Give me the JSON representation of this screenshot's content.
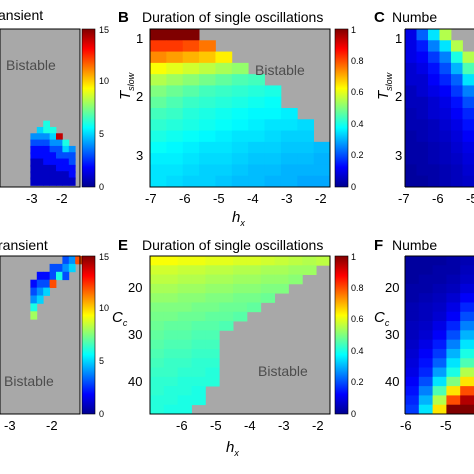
{
  "chart_data": [
    {
      "panel": "",
      "type": "heatmap",
      "title": "ansient",
      "region_label": "Bistable",
      "x_ticks": [
        "-3",
        "-2"
      ],
      "colorbar": {
        "ticks": [
          "0",
          "5",
          "10",
          "15"
        ],
        "range": [
          0,
          15
        ]
      },
      "cells": [
        {
          "x": 0.54,
          "y": 0.58,
          "v": 6
        },
        {
          "x": 0.46,
          "y": 0.62,
          "v": 5
        },
        {
          "x": 0.54,
          "y": 0.62,
          "v": 6
        },
        {
          "x": 0.62,
          "y": 0.62,
          "v": 6
        },
        {
          "x": 0.38,
          "y": 0.66,
          "v": 4
        },
        {
          "x": 0.46,
          "y": 0.66,
          "v": 4
        },
        {
          "x": 0.54,
          "y": 0.66,
          "v": 4
        },
        {
          "x": 0.62,
          "y": 0.66,
          "v": 5
        },
        {
          "x": 0.7,
          "y": 0.66,
          "v": 14
        },
        {
          "x": 0.38,
          "y": 0.7,
          "v": 3
        },
        {
          "x": 0.46,
          "y": 0.7,
          "v": 3
        },
        {
          "x": 0.54,
          "y": 0.7,
          "v": 3
        },
        {
          "x": 0.62,
          "y": 0.7,
          "v": 4
        },
        {
          "x": 0.7,
          "y": 0.7,
          "v": 4
        },
        {
          "x": 0.78,
          "y": 0.7,
          "v": 6
        },
        {
          "x": 0.38,
          "y": 0.74,
          "v": 2
        },
        {
          "x": 0.46,
          "y": 0.74,
          "v": 2
        },
        {
          "x": 0.54,
          "y": 0.74,
          "v": 2
        },
        {
          "x": 0.62,
          "y": 0.74,
          "v": 3
        },
        {
          "x": 0.7,
          "y": 0.74,
          "v": 3
        },
        {
          "x": 0.78,
          "y": 0.74,
          "v": 5
        },
        {
          "x": 0.86,
          "y": 0.74,
          "v": 4
        },
        {
          "x": 0.38,
          "y": 0.78,
          "v": 2
        },
        {
          "x": 0.46,
          "y": 0.78,
          "v": 2
        },
        {
          "x": 0.54,
          "y": 0.78,
          "v": 2
        },
        {
          "x": 0.62,
          "y": 0.78,
          "v": 2
        },
        {
          "x": 0.7,
          "y": 0.78,
          "v": 3
        },
        {
          "x": 0.78,
          "y": 0.78,
          "v": 3
        },
        {
          "x": 0.86,
          "y": 0.78,
          "v": 3
        },
        {
          "x": 0.38,
          "y": 0.82,
          "v": 1
        },
        {
          "x": 0.46,
          "y": 0.82,
          "v": 1
        },
        {
          "x": 0.54,
          "y": 0.82,
          "v": 2
        },
        {
          "x": 0.62,
          "y": 0.82,
          "v": 2
        },
        {
          "x": 0.7,
          "y": 0.82,
          "v": 2
        },
        {
          "x": 0.78,
          "y": 0.82,
          "v": 2
        },
        {
          "x": 0.86,
          "y": 0.82,
          "v": 3
        },
        {
          "x": 0.38,
          "y": 0.86,
          "v": 1
        },
        {
          "x": 0.46,
          "y": 0.86,
          "v": 1
        },
        {
          "x": 0.54,
          "y": 0.86,
          "v": 1
        },
        {
          "x": 0.62,
          "y": 0.86,
          "v": 1
        },
        {
          "x": 0.7,
          "y": 0.86,
          "v": 2
        },
        {
          "x": 0.78,
          "y": 0.86,
          "v": 2
        },
        {
          "x": 0.86,
          "y": 0.86,
          "v": 2
        },
        {
          "x": 0.38,
          "y": 0.9,
          "v": 1
        },
        {
          "x": 0.46,
          "y": 0.9,
          "v": 1
        },
        {
          "x": 0.54,
          "y": 0.9,
          "v": 1
        },
        {
          "x": 0.62,
          "y": 0.9,
          "v": 1
        },
        {
          "x": 0.7,
          "y": 0.9,
          "v": 1
        },
        {
          "x": 0.78,
          "y": 0.9,
          "v": 1
        },
        {
          "x": 0.86,
          "y": 0.9,
          "v": 2
        },
        {
          "x": 0.38,
          "y": 0.94,
          "v": 1
        },
        {
          "x": 0.46,
          "y": 0.94,
          "v": 1
        },
        {
          "x": 0.54,
          "y": 0.94,
          "v": 1
        },
        {
          "x": 0.62,
          "y": 0.94,
          "v": 1
        },
        {
          "x": 0.7,
          "y": 0.94,
          "v": 1
        },
        {
          "x": 0.78,
          "y": 0.94,
          "v": 1
        },
        {
          "x": 0.86,
          "y": 0.94,
          "v": 1
        }
      ]
    },
    {
      "panel": "B",
      "type": "heatmap",
      "title": "Duration of single oscillations",
      "xlabel": "h",
      "xlabel_sub": "x",
      "ylabel": "T",
      "ylabel_sub": "slow",
      "region_label": "Bistable",
      "x_ticks": [
        "-7",
        "-6",
        "-5",
        "-4",
        "-3",
        "-2"
      ],
      "y_ticks": [
        "1",
        "2",
        "3"
      ],
      "colorbar": {
        "ticks": [
          "0",
          "0.2",
          "0.4",
          "0.6",
          "0.8",
          "1"
        ],
        "range": [
          0,
          1
        ]
      },
      "grid": {
        "x_min": -7,
        "x_max": -1.8,
        "ncols": 11,
        "y_min": 0.8,
        "y_max": 3.5,
        "nrows": 14
      },
      "row_ends": [
        -5.6,
        -5.1,
        -4.6,
        -4.1,
        -3.6,
        -3.3,
        -3.0,
        -2.7,
        -2.5,
        -2.3,
        -2.1,
        -1.9,
        -1.8,
        -1.8
      ],
      "row_values": [
        [
          1.0,
          1.0,
          1.0
        ],
        [
          0.82,
          0.82,
          0.8,
          0.76
        ],
        [
          0.74,
          0.72,
          0.7,
          0.68,
          0.64
        ],
        [
          0.62,
          0.6,
          0.58,
          0.56,
          0.54,
          0.52
        ],
        [
          0.55,
          0.53,
          0.51,
          0.49,
          0.47,
          0.45,
          0.44
        ],
        [
          0.5,
          0.48,
          0.46,
          0.44,
          0.43,
          0.42,
          0.41,
          0.4
        ],
        [
          0.47,
          0.45,
          0.43,
          0.42,
          0.41,
          0.4,
          0.39,
          0.38
        ],
        [
          0.44,
          0.43,
          0.41,
          0.4,
          0.39,
          0.38,
          0.37,
          0.37,
          0.36
        ],
        [
          0.42,
          0.41,
          0.4,
          0.39,
          0.38,
          0.37,
          0.36,
          0.35,
          0.35,
          0.34
        ],
        [
          0.4,
          0.39,
          0.38,
          0.37,
          0.36,
          0.35,
          0.35,
          0.34,
          0.33,
          0.33
        ],
        [
          0.38,
          0.37,
          0.36,
          0.35,
          0.35,
          0.34,
          0.33,
          0.33,
          0.32,
          0.32,
          0.31
        ],
        [
          0.36,
          0.36,
          0.35,
          0.34,
          0.34,
          0.33,
          0.32,
          0.32,
          0.31,
          0.31,
          0.3
        ],
        [
          0.35,
          0.35,
          0.34,
          0.33,
          0.33,
          0.32,
          0.31,
          0.31,
          0.3,
          0.3,
          0.3
        ],
        [
          0.35,
          0.34,
          0.33,
          0.33,
          0.32,
          0.31,
          0.31,
          0.3,
          0.3,
          0.29,
          0.29
        ]
      ]
    },
    {
      "panel": "C",
      "type": "heatmap",
      "title": "Numbe",
      "ylabel": "T",
      "ylabel_sub": "slow",
      "x_ticks": [
        "-7",
        "-6",
        "-5"
      ],
      "y_ticks": [
        "1",
        "2",
        "3"
      ],
      "grid": {
        "x_min": -7.1,
        "x_max": -4.3,
        "ncols": 6,
        "y_min": 0.8,
        "y_max": 3.5,
        "nrows": 14
      },
      "row_values": [
        [
          0.1,
          0.22,
          0.35,
          0.55
        ],
        [
          0.1,
          0.15,
          0.25,
          0.35,
          0.55
        ],
        [
          0.1,
          0.12,
          0.18,
          0.25,
          0.4,
          0.55
        ],
        [
          0.08,
          0.1,
          0.14,
          0.2,
          0.3,
          0.45
        ],
        [
          0.08,
          0.08,
          0.12,
          0.16,
          0.22,
          0.35
        ],
        [
          0.06,
          0.08,
          0.1,
          0.12,
          0.18,
          0.25
        ],
        [
          0.06,
          0.06,
          0.08,
          0.1,
          0.14,
          0.2
        ],
        [
          0.05,
          0.06,
          0.08,
          0.09,
          0.12,
          0.16
        ],
        [
          0.05,
          0.05,
          0.06,
          0.08,
          0.1,
          0.14
        ],
        [
          0.04,
          0.05,
          0.06,
          0.07,
          0.09,
          0.12
        ],
        [
          0.04,
          0.04,
          0.05,
          0.06,
          0.08,
          0.1
        ],
        [
          0.04,
          0.04,
          0.05,
          0.06,
          0.07,
          0.09
        ],
        [
          0.03,
          0.04,
          0.04,
          0.05,
          0.06,
          0.08
        ],
        [
          0.03,
          0.03,
          0.04,
          0.05,
          0.06,
          0.07
        ]
      ]
    },
    {
      "panel": "",
      "type": "heatmap",
      "title": "ransient",
      "region_label": "Bistable",
      "x_ticks": [
        "-3",
        "-2"
      ],
      "colorbar": {
        "ticks": [
          "0",
          "5",
          "10",
          "15"
        ],
        "range": [
          0,
          15
        ]
      },
      "cells": [
        {
          "x": 0.78,
          "y": 0.0,
          "v": 3
        },
        {
          "x": 0.86,
          "y": 0.0,
          "v": 4
        },
        {
          "x": 0.94,
          "y": 0.0,
          "v": 12
        },
        {
          "x": 0.62,
          "y": 0.05,
          "v": 3
        },
        {
          "x": 0.7,
          "y": 0.05,
          "v": 3
        },
        {
          "x": 0.78,
          "y": 0.05,
          "v": 4
        },
        {
          "x": 0.86,
          "y": 0.05,
          "v": 5
        },
        {
          "x": 0.46,
          "y": 0.1,
          "v": 2
        },
        {
          "x": 0.54,
          "y": 0.1,
          "v": 2
        },
        {
          "x": 0.62,
          "y": 0.1,
          "v": 3
        },
        {
          "x": 0.7,
          "y": 0.1,
          "v": 6
        },
        {
          "x": 0.78,
          "y": 0.1,
          "v": 3
        },
        {
          "x": 0.38,
          "y": 0.15,
          "v": 2
        },
        {
          "x": 0.46,
          "y": 0.15,
          "v": 3
        },
        {
          "x": 0.54,
          "y": 0.15,
          "v": 3
        },
        {
          "x": 0.62,
          "y": 0.15,
          "v": 12
        },
        {
          "x": 0.38,
          "y": 0.2,
          "v": 3
        },
        {
          "x": 0.46,
          "y": 0.2,
          "v": 4
        },
        {
          "x": 0.54,
          "y": 0.2,
          "v": 5
        },
        {
          "x": 0.38,
          "y": 0.25,
          "v": 4
        },
        {
          "x": 0.46,
          "y": 0.25,
          "v": 5
        },
        {
          "x": 0.38,
          "y": 0.3,
          "v": 6
        },
        {
          "x": 0.38,
          "y": 0.35,
          "v": 8
        }
      ]
    },
    {
      "panel": "E",
      "type": "heatmap",
      "title": "Duration of single oscillations",
      "xlabel": "h",
      "xlabel_sub": "x",
      "ylabel": "C",
      "ylabel_sub": "c",
      "region_label": "Bistable",
      "x_ticks": [
        "-6",
        "-5",
        "-4",
        "-3",
        "-2"
      ],
      "y_ticks": [
        "20",
        "30",
        "40"
      ],
      "colorbar": {
        "ticks": [
          "0",
          "0.2",
          "0.4",
          "0.6",
          "0.8",
          "1"
        ],
        "range": [
          0,
          1
        ]
      },
      "grid": {
        "x_min": -7.0,
        "x_max": -1.8,
        "ncols": 13,
        "y_min": 13,
        "y_max": 47,
        "nrows": 17
      },
      "row_ends": [
        -1.8,
        -2.2,
        -2.6,
        -3.0,
        -3.4,
        -3.8,
        -4.2,
        -4.6,
        -5.0,
        -5.0,
        -5.0,
        -5.0,
        -5.0,
        -5.0,
        -5.4,
        -5.4,
        -5.8
      ],
      "row_values": [
        [
          0.62,
          0.62,
          0.61,
          0.61,
          0.6,
          0.6,
          0.59,
          0.59,
          0.58,
          0.57,
          0.56,
          0.55,
          0.56
        ],
        [
          0.58,
          0.58,
          0.57,
          0.57,
          0.56,
          0.56,
          0.55,
          0.55,
          0.54,
          0.54,
          0.53,
          0.53
        ],
        [
          0.56,
          0.56,
          0.55,
          0.55,
          0.54,
          0.54,
          0.53,
          0.53,
          0.52,
          0.52,
          0.51
        ],
        [
          0.54,
          0.54,
          0.53,
          0.53,
          0.52,
          0.52,
          0.51,
          0.51,
          0.5,
          0.5
        ],
        [
          0.52,
          0.52,
          0.51,
          0.51,
          0.5,
          0.5,
          0.49,
          0.49,
          0.48
        ],
        [
          0.5,
          0.5,
          0.5,
          0.49,
          0.49,
          0.48,
          0.48,
          0.47
        ],
        [
          0.49,
          0.49,
          0.48,
          0.48,
          0.47,
          0.47,
          0.46
        ],
        [
          0.48,
          0.47,
          0.47,
          0.46,
          0.46,
          0.45
        ],
        [
          0.47,
          0.46,
          0.46,
          0.45,
          0.45
        ],
        [
          0.46,
          0.45,
          0.45,
          0.44,
          0.44
        ],
        [
          0.45,
          0.44,
          0.44,
          0.43,
          0.43
        ],
        [
          0.44,
          0.43,
          0.43,
          0.42,
          0.42
        ],
        [
          0.43,
          0.43,
          0.42,
          0.42,
          0.41
        ],
        [
          0.42,
          0.42,
          0.41,
          0.41,
          0.41
        ],
        [
          0.42,
          0.41,
          0.41,
          0.4
        ],
        [
          0.41,
          0.41,
          0.4,
          0.4
        ],
        [
          0.41,
          0.4,
          0.4
        ]
      ]
    },
    {
      "panel": "F",
      "type": "heatmap",
      "title": "Numbe",
      "ylabel": "C",
      "ylabel_sub": "c",
      "x_ticks": [
        "-6",
        "-5"
      ],
      "y_ticks": [
        "20",
        "30",
        "40"
      ],
      "grid": {
        "x_min": -6.1,
        "x_max": -4.3,
        "ncols": 5,
        "y_min": 13,
        "y_max": 47,
        "nrows": 17
      },
      "row_values": [
        [
          0.03,
          0.03,
          0.03,
          0.04,
          0.05
        ],
        [
          0.03,
          0.03,
          0.04,
          0.04,
          0.06
        ],
        [
          0.03,
          0.04,
          0.04,
          0.05,
          0.07
        ],
        [
          0.04,
          0.04,
          0.05,
          0.06,
          0.09
        ],
        [
          0.04,
          0.05,
          0.06,
          0.08,
          0.12
        ],
        [
          0.05,
          0.06,
          0.07,
          0.1,
          0.16
        ],
        [
          0.05,
          0.06,
          0.08,
          0.12,
          0.2
        ],
        [
          0.06,
          0.07,
          0.1,
          0.16,
          0.25
        ],
        [
          0.06,
          0.08,
          0.12,
          0.2,
          0.3
        ],
        [
          0.07,
          0.1,
          0.15,
          0.25,
          0.35
        ],
        [
          0.08,
          0.12,
          0.18,
          0.3,
          0.4
        ],
        [
          0.09,
          0.14,
          0.22,
          0.35,
          0.45
        ],
        [
          0.1,
          0.16,
          0.28,
          0.4,
          0.55
        ],
        [
          0.12,
          0.2,
          0.35,
          0.5,
          0.65
        ],
        [
          0.14,
          0.25,
          0.45,
          0.65,
          0.8
        ],
        [
          0.16,
          0.3,
          0.55,
          0.8,
          0.95
        ],
        [
          0.18,
          0.35,
          0.65,
          1.0,
          1.0
        ]
      ]
    }
  ]
}
